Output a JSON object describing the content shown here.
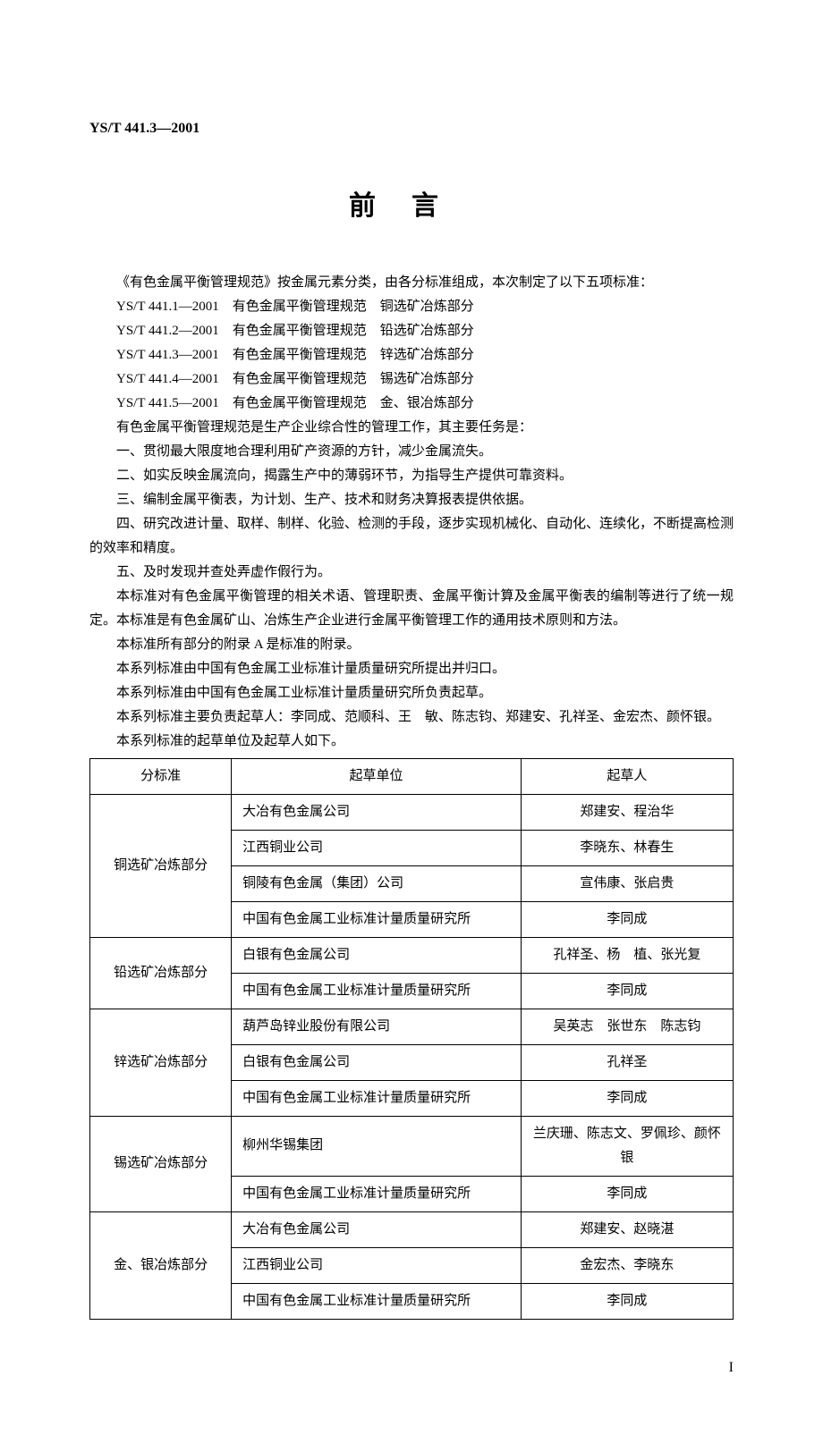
{
  "docNumber": "YS/T 441.3—2001",
  "title": "前言",
  "intro": "《有色金属平衡管理规范》按金属元素分类，由各分标准组成，本次制定了以下五项标准：",
  "standards": [
    {
      "code": "YS/T 441.1—2001",
      "name": "有色金属平衡管理规范",
      "part": "铜选矿冶炼部分"
    },
    {
      "code": "YS/T 441.2—2001",
      "name": "有色金属平衡管理规范",
      "part": "铅选矿冶炼部分"
    },
    {
      "code": "YS/T 441.3—2001",
      "name": "有色金属平衡管理规范",
      "part": "锌选矿冶炼部分"
    },
    {
      "code": "YS/T 441.4—2001",
      "name": "有色金属平衡管理规范",
      "part": "锡选矿冶炼部分"
    },
    {
      "code": "YS/T 441.5—2001",
      "name": "有色金属平衡管理规范",
      "part": "金、银冶炼部分"
    }
  ],
  "paragraphs": [
    "有色金属平衡管理规范是生产企业综合性的管理工作，其主要任务是：",
    "一、贯彻最大限度地合理利用矿产资源的方针，减少金属流失。",
    "二、如实反映金属流向，揭露生产中的薄弱环节，为指导生产提供可靠资料。",
    "三、编制金属平衡表，为计划、生产、技术和财务决算报表提供依据。",
    "四、研究改进计量、取样、制样、化验、检测的手段，逐步实现机械化、自动化、连续化，不断提高检测的效率和精度。",
    "五、及时发现并查处弄虚作假行为。",
    "本标准对有色金属平衡管理的相关术语、管理职责、金属平衡计算及金属平衡表的编制等进行了统一规定。本标准是有色金属矿山、冶炼生产企业进行金属平衡管理工作的通用技术原则和方法。",
    "本标准所有部分的附录 A 是标准的附录。",
    "本系列标准由中国有色金属工业标准计量质量研究所提出并归口。",
    "本系列标准由中国有色金属工业标准计量质量研究所负责起草。",
    "本系列标准主要负责起草人：李同成、范顺科、王　敏、陈志钧、郑建安、孔祥圣、金宏杰、颜怀银。",
    "本系列标准的起草单位及起草人如下。"
  ],
  "table": {
    "headers": [
      "分标准",
      "起草单位",
      "起草人"
    ],
    "groups": [
      {
        "label": "铜选矿冶炼部分",
        "rows": [
          {
            "unit": "大冶有色金属公司",
            "author": "郑建安、程治华"
          },
          {
            "unit": "江西铜业公司",
            "author": "李晓东、林春生"
          },
          {
            "unit": "铜陵有色金属（集团）公司",
            "author": "宣伟康、张启贵"
          },
          {
            "unit": "中国有色金属工业标准计量质量研究所",
            "author": "李同成"
          }
        ]
      },
      {
        "label": "铅选矿冶炼部分",
        "rows": [
          {
            "unit": "白银有色金属公司",
            "author": "孔祥圣、杨　植、张光复"
          },
          {
            "unit": "中国有色金属工业标准计量质量研究所",
            "author": "李同成"
          }
        ]
      },
      {
        "label": "锌选矿冶炼部分",
        "rows": [
          {
            "unit": "葫芦岛锌业股份有限公司",
            "author": "吴英志　张世东　陈志钧"
          },
          {
            "unit": "白银有色金属公司",
            "author": "孔祥圣"
          },
          {
            "unit": "中国有色金属工业标准计量质量研究所",
            "author": "李同成"
          }
        ]
      },
      {
        "label": "锡选矿冶炼部分",
        "rows": [
          {
            "unit": "柳州华锡集团",
            "author": "兰庆珊、陈志文、罗佩珍、颜怀银"
          },
          {
            "unit": "中国有色金属工业标准计量质量研究所",
            "author": "李同成"
          }
        ]
      },
      {
        "label": "金、银冶炼部分",
        "rows": [
          {
            "unit": "大冶有色金属公司",
            "author": "郑建安、赵晓湛"
          },
          {
            "unit": "江西铜业公司",
            "author": "金宏杰、李晓东"
          },
          {
            "unit": "中国有色金属工业标准计量质量研究所",
            "author": "李同成"
          }
        ]
      }
    ]
  },
  "pageNumber": "I"
}
